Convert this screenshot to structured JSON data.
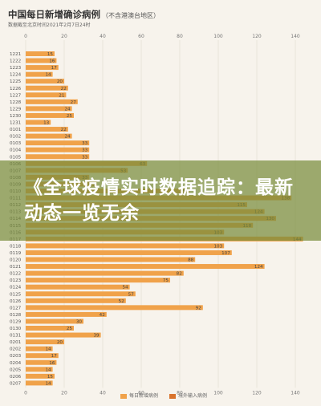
{
  "page": {
    "title": "中国每日新增确诊病例",
    "subtitle": "（不含港澳台地区）",
    "source": "数据截至北京时间2021年2月7日24时",
    "overlay_text": "《全球疫情实时数据追踪：最新动态一览无余"
  },
  "colors": {
    "local": "#f0a24a",
    "imported": "#d9732c",
    "gridline": "#e3ddd3"
  },
  "chart_data": {
    "type": "bar",
    "title": "中国每日新增确诊病例",
    "subtitle": "（不含港澳台地区）",
    "xlim": [
      0,
      140
    ],
    "x_ticks": [
      0,
      20,
      40,
      60,
      80,
      100,
      120,
      140
    ],
    "categories": [
      "1221",
      "1222",
      "1223",
      "1224",
      "1225",
      "1226",
      "1227",
      "1228",
      "1229",
      "1230",
      "1231",
      "0101",
      "0102",
      "0103",
      "0104",
      "0105",
      "0106",
      "0107",
      "0108",
      "0109",
      "0110",
      "0111",
      "0112",
      "0113",
      "0114",
      "0115",
      "0116",
      "0117",
      "0118",
      "0119",
      "0120",
      "0121",
      "0122",
      "0123",
      "0124",
      "0125",
      "0126",
      "0127",
      "0128",
      "0129",
      "0130",
      "0131",
      "0201",
      "0202",
      "0203",
      "0204",
      "0205",
      "0206",
      "0207"
    ],
    "series": [
      {
        "name": "每日新增病例",
        "values": [
          15,
          16,
          17,
          14,
          20,
          22,
          21,
          27,
          24,
          25,
          13,
          22,
          24,
          33,
          33,
          33,
          63,
          53,
          33,
          37,
          85,
          138,
          115,
          124,
          130,
          118,
          103,
          144,
          103,
          107,
          88,
          124,
          82,
          75,
          54,
          57,
          52,
          92,
          42,
          30,
          25,
          39,
          20,
          14,
          17,
          16,
          14,
          15,
          14
        ]
      },
      {
        "name": "境外输入病例",
        "values": [
          null,
          null,
          null,
          null,
          null,
          null,
          null,
          null,
          null,
          null,
          null,
          null,
          null,
          null,
          null,
          null,
          null,
          null,
          null,
          null,
          null,
          null,
          null,
          null,
          null,
          null,
          null,
          null,
          null,
          null,
          null,
          null,
          null,
          null,
          null,
          null,
          null,
          null,
          null,
          null,
          null,
          null,
          null,
          null,
          null,
          null,
          null,
          null,
          null
        ]
      }
    ],
    "data_labels": [
      "15",
      "16",
      "17",
      "14",
      "20",
      "22",
      "21",
      "27",
      "24",
      "25",
      "13",
      "22",
      "24",
      "33",
      "33",
      "33",
      "63",
      "53",
      "33",
      "37",
      "85",
      "138",
      "115",
      "124",
      "130",
      "118",
      "103",
      "144",
      "103",
      "107",
      "88",
      "124",
      "82",
      "75",
      "54",
      "57",
      "52",
      "92",
      "42",
      "30",
      "25",
      "39",
      "20",
      "14",
      "17",
      "16",
      "14",
      "15",
      "14"
    ]
  },
  "legend": [
    {
      "label": "每日新增病例",
      "color": "#f0a24a"
    },
    {
      "label": "境外输入病例",
      "color": "#d9732c"
    }
  ]
}
